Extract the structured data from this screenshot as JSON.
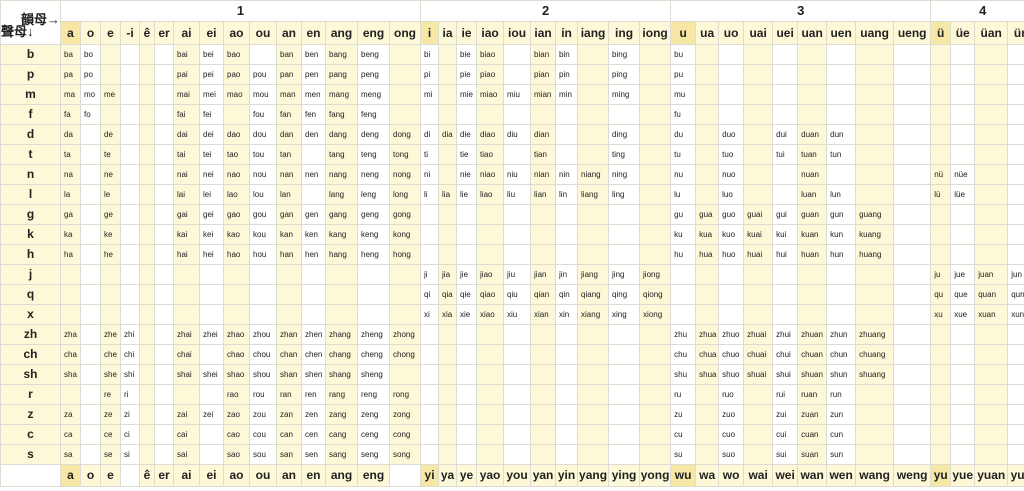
{
  "corner": {
    "top": "韻母→",
    "left": "聲母↓"
  },
  "groups": [
    "1",
    "2",
    "3",
    "4"
  ],
  "finals": [
    "a",
    "o",
    "e",
    "-i",
    "ê",
    "er",
    "ai",
    "ei",
    "ao",
    "ou",
    "an",
    "en",
    "ang",
    "eng",
    "ong",
    "i",
    "ia",
    "ie",
    "iao",
    "iou",
    "ian",
    "in",
    "iang",
    "ing",
    "iong",
    "u",
    "ua",
    "uo",
    "uai",
    "uei",
    "uan",
    "uen",
    "uang",
    "ueng",
    "ü",
    "üe",
    "üan",
    "ün"
  ],
  "bottom": [
    "a",
    "o",
    "e",
    "",
    "ê",
    "er",
    "ai",
    "ei",
    "ao",
    "ou",
    "an",
    "en",
    "ang",
    "eng",
    "",
    "yi",
    "ya",
    "ye",
    "yao",
    "you",
    "yan",
    "yin",
    "yang",
    "ying",
    "yong",
    "wu",
    "wa",
    "wo",
    "wai",
    "wei",
    "wan",
    "wen",
    "wang",
    "weng",
    "yu",
    "yue",
    "yuan",
    "yun"
  ],
  "rows": [
    {
      "initial": "b",
      "cells": [
        "ba",
        "bo",
        "",
        "",
        "",
        "",
        "bai",
        "bei",
        "bao",
        "",
        "ban",
        "ben",
        "bang",
        "beng",
        "",
        "bi",
        "",
        "bie",
        "biao",
        "",
        "bian",
        "bin",
        "",
        "bing",
        "",
        "bu",
        "",
        "",
        "",
        "",
        "",
        "",
        "",
        "",
        "",
        "",
        "",
        ""
      ]
    },
    {
      "initial": "p",
      "cells": [
        "pa",
        "po",
        "",
        "",
        "",
        "",
        "pai",
        "pei",
        "pao",
        "pou",
        "pan",
        "pen",
        "pang",
        "peng",
        "",
        "pi",
        "",
        "pie",
        "piao",
        "",
        "pian",
        "pin",
        "",
        "ping",
        "",
        "pu",
        "",
        "",
        "",
        "",
        "",
        "",
        "",
        "",
        "",
        "",
        "",
        ""
      ]
    },
    {
      "initial": "m",
      "cells": [
        "ma",
        "mo",
        "me",
        "",
        "",
        "",
        "mai",
        "mei",
        "mao",
        "mou",
        "man",
        "men",
        "mang",
        "meng",
        "",
        "mi",
        "",
        "mie",
        "miao",
        "miu",
        "mian",
        "min",
        "",
        "ming",
        "",
        "mu",
        "",
        "",
        "",
        "",
        "",
        "",
        "",
        "",
        "",
        "",
        "",
        ""
      ]
    },
    {
      "initial": "f",
      "cells": [
        "fa",
        "fo",
        "",
        "",
        "",
        "",
        "fai",
        "fei",
        "",
        "fou",
        "fan",
        "fen",
        "fang",
        "feng",
        "",
        "",
        "",
        "",
        "",
        "",
        "",
        "",
        "",
        "",
        "",
        "fu",
        "",
        "",
        "",
        "",
        "",
        "",
        "",
        "",
        "",
        "",
        "",
        ""
      ]
    },
    {
      "initial": "d",
      "cells": [
        "da",
        "",
        "de",
        "",
        "",
        "",
        "dai",
        "dei",
        "dao",
        "dou",
        "dan",
        "den",
        "dang",
        "deng",
        "dong",
        "di",
        "dia",
        "die",
        "diao",
        "diu",
        "dian",
        "",
        "",
        "ding",
        "",
        "du",
        "",
        "duo",
        "",
        "dui",
        "duan",
        "dun",
        "",
        "",
        "",
        "",
        "",
        ""
      ]
    },
    {
      "initial": "t",
      "cells": [
        "ta",
        "",
        "te",
        "",
        "",
        "",
        "tai",
        "tei",
        "tao",
        "tou",
        "tan",
        "",
        "tang",
        "teng",
        "tong",
        "ti",
        "",
        "tie",
        "tiao",
        "",
        "tian",
        "",
        "",
        "ting",
        "",
        "tu",
        "",
        "tuo",
        "",
        "tui",
        "tuan",
        "tun",
        "",
        "",
        "",
        "",
        "",
        ""
      ]
    },
    {
      "initial": "n",
      "cells": [
        "na",
        "",
        "ne",
        "",
        "",
        "",
        "nai",
        "nei",
        "nao",
        "nou",
        "nan",
        "nen",
        "nang",
        "neng",
        "nong",
        "ni",
        "",
        "nie",
        "niao",
        "niu",
        "nian",
        "nin",
        "niang",
        "ning",
        "",
        "nu",
        "",
        "nuo",
        "",
        "",
        "nuan",
        "",
        "",
        "",
        "nü",
        "nüe",
        "",
        ""
      ]
    },
    {
      "initial": "l",
      "cells": [
        "la",
        "",
        "le",
        "",
        "",
        "",
        "lai",
        "lei",
        "lao",
        "lou",
        "lan",
        "",
        "lang",
        "leng",
        "long",
        "li",
        "lia",
        "lie",
        "liao",
        "liu",
        "lian",
        "lin",
        "liang",
        "ling",
        "",
        "lu",
        "",
        "luo",
        "",
        "",
        "luan",
        "lun",
        "",
        "",
        "lü",
        "lüe",
        "",
        ""
      ]
    },
    {
      "initial": "g",
      "cells": [
        "ga",
        "",
        "ge",
        "",
        "",
        "",
        "gai",
        "gei",
        "gao",
        "gou",
        "gan",
        "gen",
        "gang",
        "geng",
        "gong",
        "",
        "",
        "",
        "",
        "",
        "",
        "",
        "",
        "",
        "",
        "gu",
        "gua",
        "guo",
        "guai",
        "gui",
        "guan",
        "gun",
        "guang",
        "",
        "",
        "",
        "",
        ""
      ]
    },
    {
      "initial": "k",
      "cells": [
        "ka",
        "",
        "ke",
        "",
        "",
        "",
        "kai",
        "kei",
        "kao",
        "kou",
        "kan",
        "ken",
        "kang",
        "keng",
        "kong",
        "",
        "",
        "",
        "",
        "",
        "",
        "",
        "",
        "",
        "",
        "ku",
        "kua",
        "kuo",
        "kuai",
        "kui",
        "kuan",
        "kun",
        "kuang",
        "",
        "",
        "",
        "",
        ""
      ]
    },
    {
      "initial": "h",
      "cells": [
        "ha",
        "",
        "he",
        "",
        "",
        "",
        "hai",
        "hei",
        "hao",
        "hou",
        "han",
        "hen",
        "hang",
        "heng",
        "hong",
        "",
        "",
        "",
        "",
        "",
        "",
        "",
        "",
        "",
        "",
        "hu",
        "hua",
        "huo",
        "huai",
        "hui",
        "huan",
        "hun",
        "huang",
        "",
        "",
        "",
        "",
        ""
      ]
    },
    {
      "initial": "j",
      "cells": [
        "",
        "",
        "",
        "",
        "",
        "",
        "",
        "",
        "",
        "",
        "",
        "",
        "",
        "",
        "",
        "ji",
        "jia",
        "jie",
        "jiao",
        "jiu",
        "jian",
        "jin",
        "jiang",
        "jing",
        "jiong",
        "",
        "",
        "",
        "",
        "",
        "",
        "",
        "",
        "",
        "ju",
        "jue",
        "juan",
        "jun"
      ]
    },
    {
      "initial": "q",
      "cells": [
        "",
        "",
        "",
        "",
        "",
        "",
        "",
        "",
        "",
        "",
        "",
        "",
        "",
        "",
        "",
        "qi",
        "qia",
        "qie",
        "qiao",
        "qiu",
        "qian",
        "qin",
        "qiang",
        "qing",
        "qiong",
        "",
        "",
        "",
        "",
        "",
        "",
        "",
        "",
        "",
        "qu",
        "que",
        "quan",
        "qun"
      ]
    },
    {
      "initial": "x",
      "cells": [
        "",
        "",
        "",
        "",
        "",
        "",
        "",
        "",
        "",
        "",
        "",
        "",
        "",
        "",
        "",
        "xi",
        "xia",
        "xie",
        "xiao",
        "xiu",
        "xian",
        "xin",
        "xiang",
        "xing",
        "xiong",
        "",
        "",
        "",
        "",
        "",
        "",
        "",
        "",
        "",
        "xu",
        "xue",
        "xuan",
        "xun"
      ]
    },
    {
      "initial": "zh",
      "cells": [
        "zha",
        "",
        "zhe",
        "zhi",
        "",
        "",
        "zhai",
        "zhei",
        "zhao",
        "zhou",
        "zhan",
        "zhen",
        "zhang",
        "zheng",
        "zhong",
        "",
        "",
        "",
        "",
        "",
        "",
        "",
        "",
        "",
        "",
        "zhu",
        "zhua",
        "zhuo",
        "zhuai",
        "zhui",
        "zhuan",
        "zhun",
        "zhuang",
        "",
        "",
        "",
        "",
        ""
      ]
    },
    {
      "initial": "ch",
      "cells": [
        "cha",
        "",
        "che",
        "chi",
        "",
        "",
        "chai",
        "",
        "chao",
        "chou",
        "chan",
        "chen",
        "chang",
        "cheng",
        "chong",
        "",
        "",
        "",
        "",
        "",
        "",
        "",
        "",
        "",
        "",
        "chu",
        "chua",
        "chuo",
        "chuai",
        "chui",
        "chuan",
        "chun",
        "chuang",
        "",
        "",
        "",
        "",
        ""
      ]
    },
    {
      "initial": "sh",
      "cells": [
        "sha",
        "",
        "she",
        "shi",
        "",
        "",
        "shai",
        "shei",
        "shao",
        "shou",
        "shan",
        "shen",
        "shang",
        "sheng",
        "",
        "",
        "",
        "",
        "",
        "",
        "",
        "",
        "",
        "",
        "",
        "shu",
        "shua",
        "shuo",
        "shuai",
        "shui",
        "shuan",
        "shun",
        "shuang",
        "",
        "",
        "",
        "",
        ""
      ]
    },
    {
      "initial": "r",
      "cells": [
        "",
        "",
        "re",
        "ri",
        "",
        "",
        "",
        "",
        "rao",
        "rou",
        "ran",
        "ren",
        "rang",
        "reng",
        "rong",
        "",
        "",
        "",
        "",
        "",
        "",
        "",
        "",
        "",
        "",
        "ru",
        "",
        "ruo",
        "",
        "rui",
        "ruan",
        "run",
        "",
        "",
        "",
        "",
        "",
        ""
      ]
    },
    {
      "initial": "z",
      "cells": [
        "za",
        "",
        "ze",
        "zi",
        "",
        "",
        "zai",
        "zei",
        "zao",
        "zou",
        "zan",
        "zen",
        "zang",
        "zeng",
        "zong",
        "",
        "",
        "",
        "",
        "",
        "",
        "",
        "",
        "",
        "",
        "zu",
        "",
        "zuo",
        "",
        "zui",
        "zuan",
        "zun",
        "",
        "",
        "",
        "",
        "",
        ""
      ]
    },
    {
      "initial": "c",
      "cells": [
        "ca",
        "",
        "ce",
        "ci",
        "",
        "",
        "cai",
        "",
        "cao",
        "cou",
        "can",
        "cen",
        "cang",
        "ceng",
        "cong",
        "",
        "",
        "",
        "",
        "",
        "",
        "",
        "",
        "",
        "",
        "cu",
        "",
        "cuo",
        "",
        "cui",
        "cuan",
        "cun",
        "",
        "",
        "",
        "",
        "",
        ""
      ]
    },
    {
      "initial": "s",
      "cells": [
        "sa",
        "",
        "se",
        "si",
        "",
        "",
        "sai",
        "",
        "sao",
        "sou",
        "san",
        "sen",
        "sang",
        "seng",
        "song",
        "",
        "",
        "",
        "",
        "",
        "",
        "",
        "",
        "",
        "",
        "su",
        "",
        "suo",
        "",
        "sui",
        "suan",
        "sun",
        "",
        "",
        "",
        "",
        "",
        ""
      ]
    }
  ]
}
